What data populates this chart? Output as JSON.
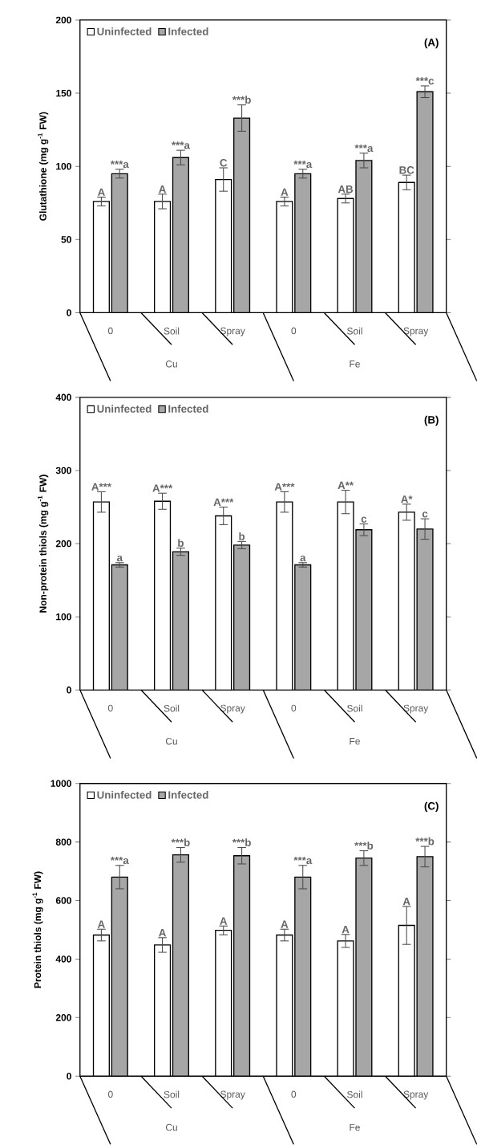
{
  "chart_data": [
    {
      "type": "bar",
      "categories": [
        "0",
        "Soil",
        "Spray",
        "0",
        "Soil",
        "Spray"
      ],
      "ylabel": "Glutathione (mg g$^{-1}$ FW)",
      "ylim": [
        0,
        200
      ],
      "yticks": [
        0,
        50,
        100,
        150,
        200
      ],
      "legend": "top left",
      "annotations": [
        "(A)",
        "Cu",
        "Fe"
      ],
      "series": [
        {
          "name": "Uninfected",
          "color": "#ffffff",
          "values": [
            76,
            76,
            91,
            76,
            78,
            89
          ],
          "errors": [
            3,
            5,
            8,
            3,
            3,
            5
          ],
          "value_labels": [
            "A",
            "A",
            "C",
            "A",
            "AB",
            "BC"
          ]
        },
        {
          "name": "Infected",
          "color": "#a6a6a6",
          "values": [
            95,
            106,
            133,
            95,
            104,
            151
          ],
          "errors": [
            3,
            5,
            9,
            3,
            5,
            4
          ],
          "value_labels": [
            "***a",
            "***a",
            "***b",
            "***a",
            "***a",
            "***c"
          ]
        }
      ]
    },
    {
      "type": "bar",
      "categories": [
        "0",
        "Soil",
        "Spray",
        "0",
        "Soil",
        "Spray"
      ],
      "ylabel": "Non-protein thiols (mg g$^{-1}$ FW)",
      "ylim": [
        0,
        400
      ],
      "yticks": [
        0,
        100,
        200,
        300,
        400
      ],
      "legend": "top left",
      "annotations": [
        "(B)",
        "Cu",
        "Fe"
      ],
      "series": [
        {
          "name": "Uninfected",
          "color": "#ffffff",
          "values": [
            257,
            258,
            238,
            257,
            257,
            243
          ],
          "errors": [
            14,
            11,
            12,
            14,
            16,
            11
          ],
          "value_labels": [
            "A***",
            "A***",
            "A***",
            "A***",
            "A**",
            "A*"
          ]
        },
        {
          "name": "Infected",
          "color": "#a6a6a6",
          "values": [
            171,
            189,
            198,
            171,
            219,
            220
          ],
          "errors": [
            3,
            5,
            5,
            3,
            8,
            14
          ],
          "value_labels": [
            "a",
            "b",
            "b",
            "a",
            "c",
            "c"
          ]
        }
      ]
    },
    {
      "type": "bar",
      "categories": [
        "0",
        "Soil",
        "Spray",
        "0",
        "Soil",
        "Spray"
      ],
      "ylabel": "Protein thiols (mg g$^{-1}$ FW)",
      "ylim": [
        0,
        1000
      ],
      "yticks": [
        0,
        200,
        400,
        600,
        800,
        1000
      ],
      "legend": "top left",
      "annotations": [
        "(C)",
        "Cu",
        "Fe"
      ],
      "series": [
        {
          "name": "Uninfected",
          "color": "#ffffff",
          "values": [
            482,
            448,
            498,
            482,
            462,
            515
          ],
          "errors": [
            20,
            25,
            15,
            20,
            22,
            65
          ],
          "value_labels": [
            "A",
            "A",
            "A",
            "A",
            "A",
            "A"
          ]
        },
        {
          "name": "Infected",
          "color": "#a6a6a6",
          "values": [
            680,
            756,
            753,
            680,
            745,
            750
          ],
          "errors": [
            40,
            25,
            28,
            40,
            25,
            35
          ],
          "value_labels": [
            "***a",
            "***b",
            "***b",
            "***a",
            "***b",
            "***b"
          ]
        }
      ]
    }
  ]
}
